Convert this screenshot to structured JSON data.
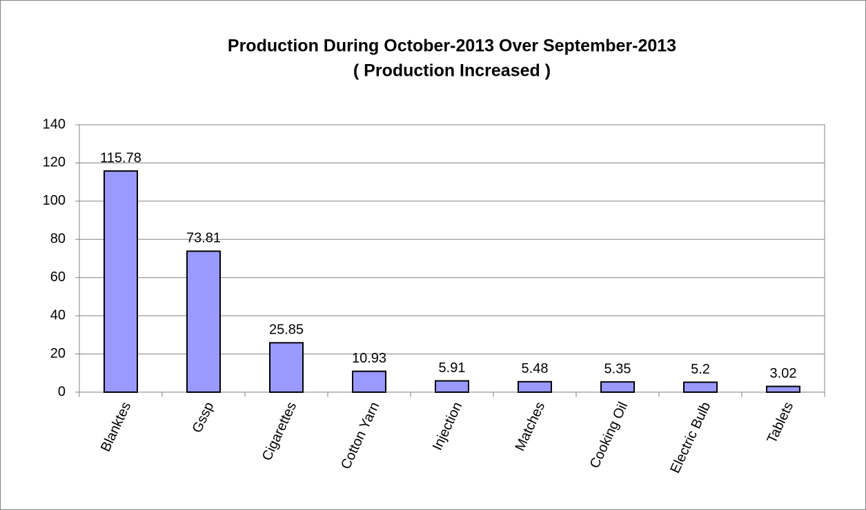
{
  "chart_data": {
    "type": "bar",
    "title": "Production During October-2013 Over September-2013",
    "subtitle": "( Production Increased )",
    "categories": [
      "Blanktes",
      "Gssp",
      "Cigarettes",
      "Cotton Yarn",
      "Injection",
      "Matches",
      "Cooking Oil",
      "Electric Bulb",
      "Tablets"
    ],
    "values": [
      115.78,
      73.81,
      25.85,
      10.93,
      5.91,
      5.48,
      5.35,
      5.2,
      3.02
    ],
    "color": "#9999ff",
    "ylim": [
      0,
      140
    ],
    "yticks": [
      0,
      20,
      40,
      60,
      80,
      100,
      120,
      140
    ],
    "grid": true
  }
}
